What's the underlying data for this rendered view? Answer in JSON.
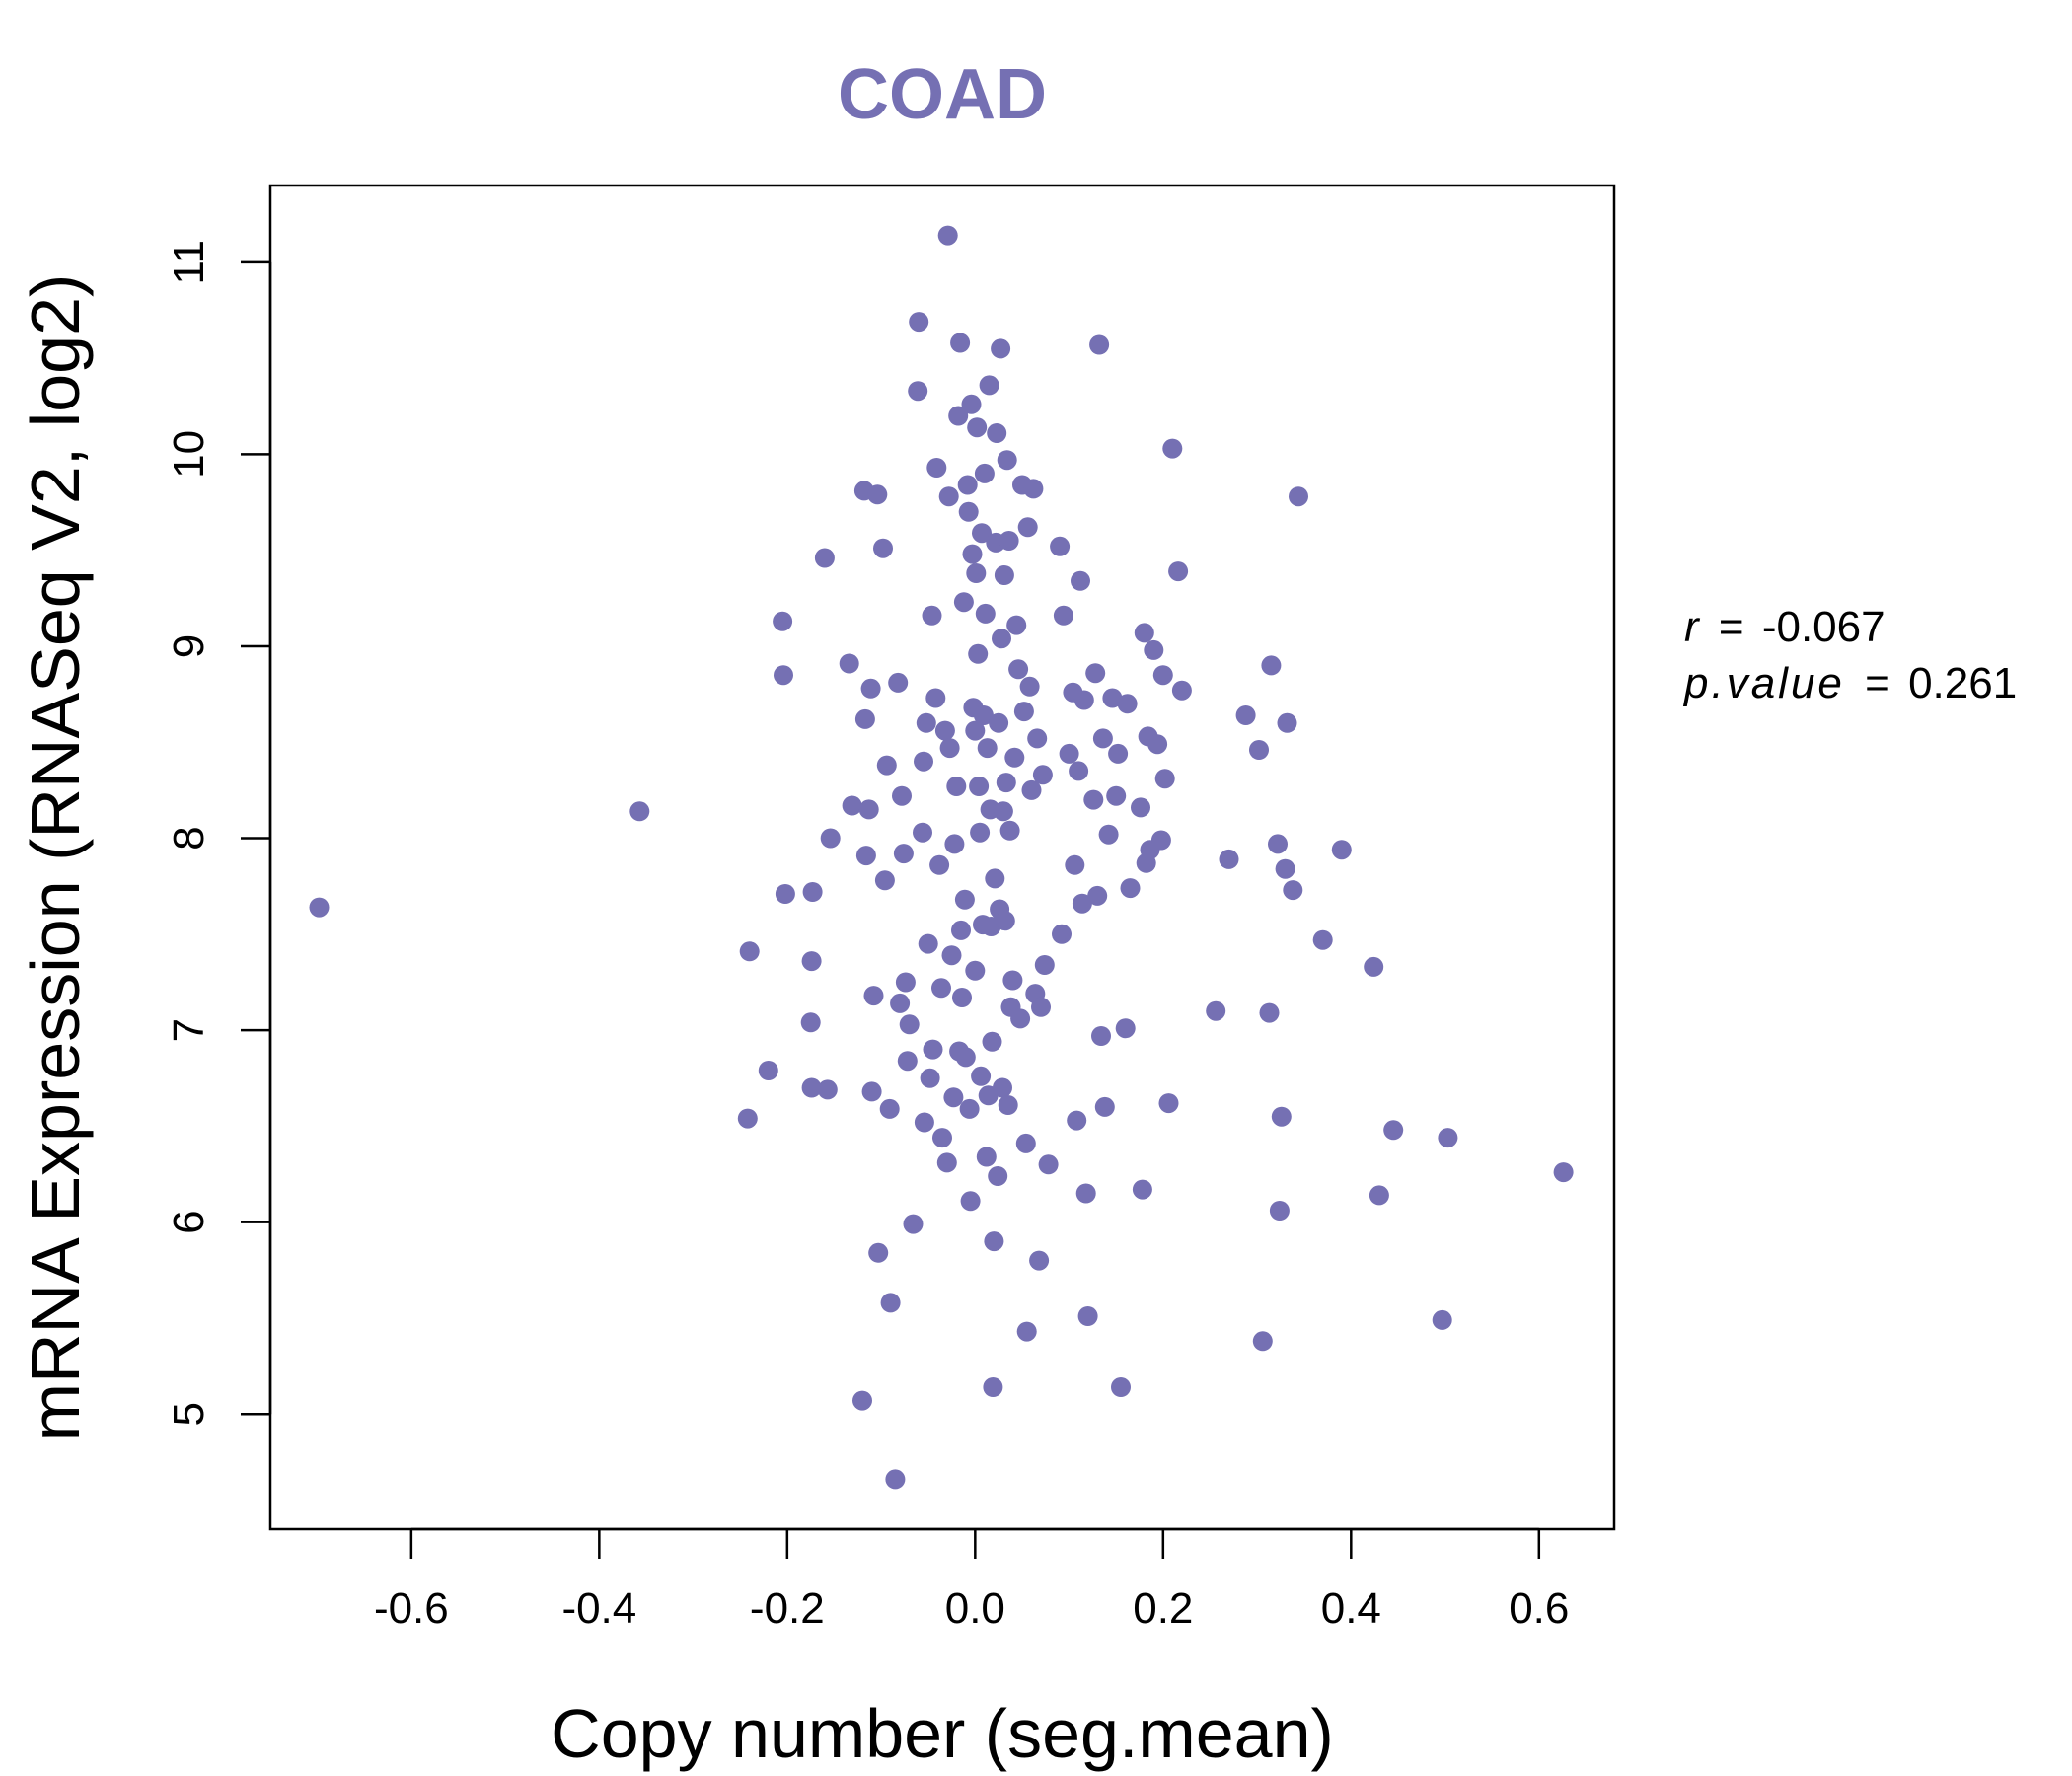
{
  "chart_data": {
    "type": "scatter",
    "title": "COAD",
    "xlabel": "Copy number (seg.mean)",
    "ylabel": "mRNA Expression (RNASeq V2, log2)",
    "xlim": [
      -0.75,
      0.68
    ],
    "ylim": [
      4.4,
      11.4
    ],
    "xticks": [
      -0.6,
      -0.4,
      -0.2,
      0.0,
      0.2,
      0.4,
      0.6
    ],
    "xtick_labels": [
      "-0.6",
      "-0.4",
      "-0.2",
      "0.0",
      "0.2",
      "0.4",
      "0.6"
    ],
    "yticks": [
      5,
      6,
      7,
      8,
      9,
      10,
      11
    ],
    "ytick_labels": [
      "5",
      "6",
      "7",
      "8",
      "9",
      "10",
      "11"
    ],
    "grid": false,
    "color": "#7570b3",
    "stats": {
      "r_label": "r",
      "r_value": "-0.067",
      "p_label": "p.value",
      "p_value": "0.261",
      "eq": "="
    },
    "points": [
      [
        -0.698,
        7.64
      ],
      [
        -0.357,
        8.14
      ],
      [
        -0.24,
        7.41
      ],
      [
        -0.242,
        6.54
      ],
      [
        -0.22,
        6.79
      ],
      [
        -0.205,
        9.13
      ],
      [
        -0.204,
        8.85
      ],
      [
        -0.202,
        7.71
      ],
      [
        -0.173,
        7.72
      ],
      [
        -0.174,
        7.36
      ],
      [
        -0.175,
        7.04
      ],
      [
        -0.174,
        6.7
      ],
      [
        -0.16,
        9.46
      ],
      [
        -0.157,
        6.69
      ],
      [
        -0.154,
        8.0
      ],
      [
        -0.134,
        8.91
      ],
      [
        -0.131,
        8.17
      ],
      [
        -0.118,
        9.81
      ],
      [
        -0.117,
        8.62
      ],
      [
        -0.116,
        7.91
      ],
      [
        -0.113,
        8.15
      ],
      [
        -0.111,
        8.78
      ],
      [
        -0.11,
        6.68
      ],
      [
        -0.108,
        7.18
      ],
      [
        -0.104,
        9.79
      ],
      [
        -0.103,
        5.84
      ],
      [
        -0.098,
        9.51
      ],
      [
        -0.096,
        7.78
      ],
      [
        -0.094,
        8.38
      ],
      [
        -0.091,
        6.59
      ],
      [
        -0.09,
        5.58
      ],
      [
        -0.085,
        4.66
      ],
      [
        -0.12,
        5.07
      ],
      [
        -0.082,
        8.81
      ],
      [
        -0.08,
        7.14
      ],
      [
        -0.078,
        8.22
      ],
      [
        -0.076,
        7.92
      ],
      [
        -0.074,
        7.25
      ],
      [
        -0.072,
        6.84
      ],
      [
        -0.07,
        7.03
      ],
      [
        -0.066,
        5.99
      ],
      [
        -0.06,
        10.69
      ],
      [
        -0.061,
        10.33
      ],
      [
        -0.056,
        8.03
      ],
      [
        -0.055,
        8.4
      ],
      [
        -0.054,
        6.52
      ],
      [
        -0.052,
        8.6
      ],
      [
        -0.05,
        7.45
      ],
      [
        -0.048,
        6.75
      ],
      [
        -0.046,
        9.16
      ],
      [
        -0.045,
        6.9
      ],
      [
        -0.042,
        8.73
      ],
      [
        -0.041,
        9.93
      ],
      [
        -0.038,
        7.86
      ],
      [
        -0.036,
        7.22
      ],
      [
        -0.035,
        6.44
      ],
      [
        -0.032,
        8.56
      ],
      [
        -0.03,
        6.31
      ],
      [
        -0.028,
        9.78
      ],
      [
        -0.029,
        11.14
      ],
      [
        -0.027,
        8.47
      ],
      [
        -0.025,
        7.39
      ],
      [
        -0.023,
        6.65
      ],
      [
        -0.022,
        7.97
      ],
      [
        -0.02,
        8.27
      ],
      [
        -0.018,
        10.2
      ],
      [
        -0.016,
        10.58
      ],
      [
        -0.017,
        6.89
      ],
      [
        -0.015,
        7.52
      ],
      [
        -0.014,
        7.17
      ],
      [
        -0.012,
        9.23
      ],
      [
        -0.011,
        7.68
      ],
      [
        -0.01,
        6.86
      ],
      [
        -0.008,
        9.84
      ],
      [
        -0.007,
        9.7
      ],
      [
        -0.006,
        6.59
      ],
      [
        -0.005,
        6.11
      ],
      [
        -0.004,
        10.26
      ],
      [
        -0.003,
        9.48
      ],
      [
        -0.002,
        8.68
      ],
      [
        0.0,
        7.31
      ],
      [
        0.0,
        8.56
      ],
      [
        0.001,
        9.38
      ],
      [
        0.002,
        10.14
      ],
      [
        0.003,
        8.96
      ],
      [
        0.004,
        8.27
      ],
      [
        0.005,
        8.03
      ],
      [
        0.006,
        6.76
      ],
      [
        0.007,
        9.59
      ],
      [
        0.008,
        7.55
      ],
      [
        0.009,
        8.64
      ],
      [
        0.01,
        9.9
      ],
      [
        0.011,
        9.17
      ],
      [
        0.012,
        6.34
      ],
      [
        0.013,
        8.47
      ],
      [
        0.014,
        6.66
      ],
      [
        0.015,
        10.36
      ],
      [
        0.016,
        8.15
      ],
      [
        0.017,
        7.54
      ],
      [
        0.018,
        6.94
      ],
      [
        0.019,
        5.14
      ],
      [
        0.02,
        5.9
      ],
      [
        0.021,
        7.79
      ],
      [
        0.022,
        9.54
      ],
      [
        0.023,
        10.11
      ],
      [
        0.024,
        6.24
      ],
      [
        0.025,
        8.6
      ],
      [
        0.026,
        7.63
      ],
      [
        0.027,
        10.55
      ],
      [
        0.028,
        9.04
      ],
      [
        0.029,
        6.7
      ],
      [
        0.03,
        8.14
      ],
      [
        0.031,
        9.37
      ],
      [
        0.032,
        7.57
      ],
      [
        0.033,
        8.29
      ],
      [
        0.034,
        9.97
      ],
      [
        0.035,
        6.61
      ],
      [
        0.036,
        9.55
      ],
      [
        0.037,
        8.04
      ],
      [
        0.038,
        7.12
      ],
      [
        0.04,
        7.26
      ],
      [
        0.042,
        8.42
      ],
      [
        0.044,
        9.11
      ],
      [
        0.046,
        8.88
      ],
      [
        0.048,
        7.06
      ],
      [
        0.05,
        9.84
      ],
      [
        0.052,
        8.66
      ],
      [
        0.054,
        6.41
      ],
      [
        0.055,
        5.43
      ],
      [
        0.056,
        9.62
      ],
      [
        0.058,
        8.79
      ],
      [
        0.06,
        8.25
      ],
      [
        0.062,
        9.82
      ],
      [
        0.064,
        7.19
      ],
      [
        0.066,
        8.52
      ],
      [
        0.068,
        5.8
      ],
      [
        0.07,
        7.12
      ],
      [
        0.072,
        8.33
      ],
      [
        0.074,
        7.34
      ],
      [
        0.078,
        6.3
      ],
      [
        0.09,
        9.52
      ],
      [
        0.092,
        7.5
      ],
      [
        0.094,
        9.16
      ],
      [
        0.1,
        8.44
      ],
      [
        0.104,
        8.76
      ],
      [
        0.106,
        7.86
      ],
      [
        0.108,
        6.53
      ],
      [
        0.11,
        8.35
      ],
      [
        0.112,
        9.34
      ],
      [
        0.114,
        7.66
      ],
      [
        0.116,
        8.72
      ],
      [
        0.118,
        6.15
      ],
      [
        0.12,
        5.51
      ],
      [
        0.126,
        8.2
      ],
      [
        0.128,
        8.86
      ],
      [
        0.13,
        7.7
      ],
      [
        0.132,
        10.57
      ],
      [
        0.134,
        6.97
      ],
      [
        0.136,
        8.52
      ],
      [
        0.138,
        6.6
      ],
      [
        0.142,
        8.02
      ],
      [
        0.146,
        8.73
      ],
      [
        0.15,
        8.22
      ],
      [
        0.152,
        8.44
      ],
      [
        0.155,
        5.14
      ],
      [
        0.16,
        7.01
      ],
      [
        0.162,
        8.7
      ],
      [
        0.165,
        7.74
      ],
      [
        0.176,
        8.16
      ],
      [
        0.178,
        6.17
      ],
      [
        0.18,
        9.07
      ],
      [
        0.182,
        7.87
      ],
      [
        0.184,
        8.53
      ],
      [
        0.186,
        7.94
      ],
      [
        0.19,
        8.98
      ],
      [
        0.194,
        8.49
      ],
      [
        0.198,
        7.99
      ],
      [
        0.2,
        8.85
      ],
      [
        0.202,
        8.31
      ],
      [
        0.206,
        6.62
      ],
      [
        0.21,
        10.03
      ],
      [
        0.216,
        9.39
      ],
      [
        0.22,
        8.77
      ],
      [
        0.256,
        7.1
      ],
      [
        0.27,
        7.89
      ],
      [
        0.288,
        8.64
      ],
      [
        0.302,
        8.46
      ],
      [
        0.306,
        5.38
      ],
      [
        0.313,
        7.09
      ],
      [
        0.315,
        8.9
      ],
      [
        0.322,
        7.97
      ],
      [
        0.324,
        6.06
      ],
      [
        0.326,
        6.55
      ],
      [
        0.33,
        7.84
      ],
      [
        0.332,
        8.6
      ],
      [
        0.338,
        7.73
      ],
      [
        0.344,
        9.78
      ],
      [
        0.37,
        7.47
      ],
      [
        0.39,
        7.94
      ],
      [
        0.424,
        7.33
      ],
      [
        0.43,
        6.14
      ],
      [
        0.445,
        6.48
      ],
      [
        0.497,
        5.49
      ],
      [
        0.503,
        6.44
      ],
      [
        0.626,
        6.26
      ]
    ]
  }
}
